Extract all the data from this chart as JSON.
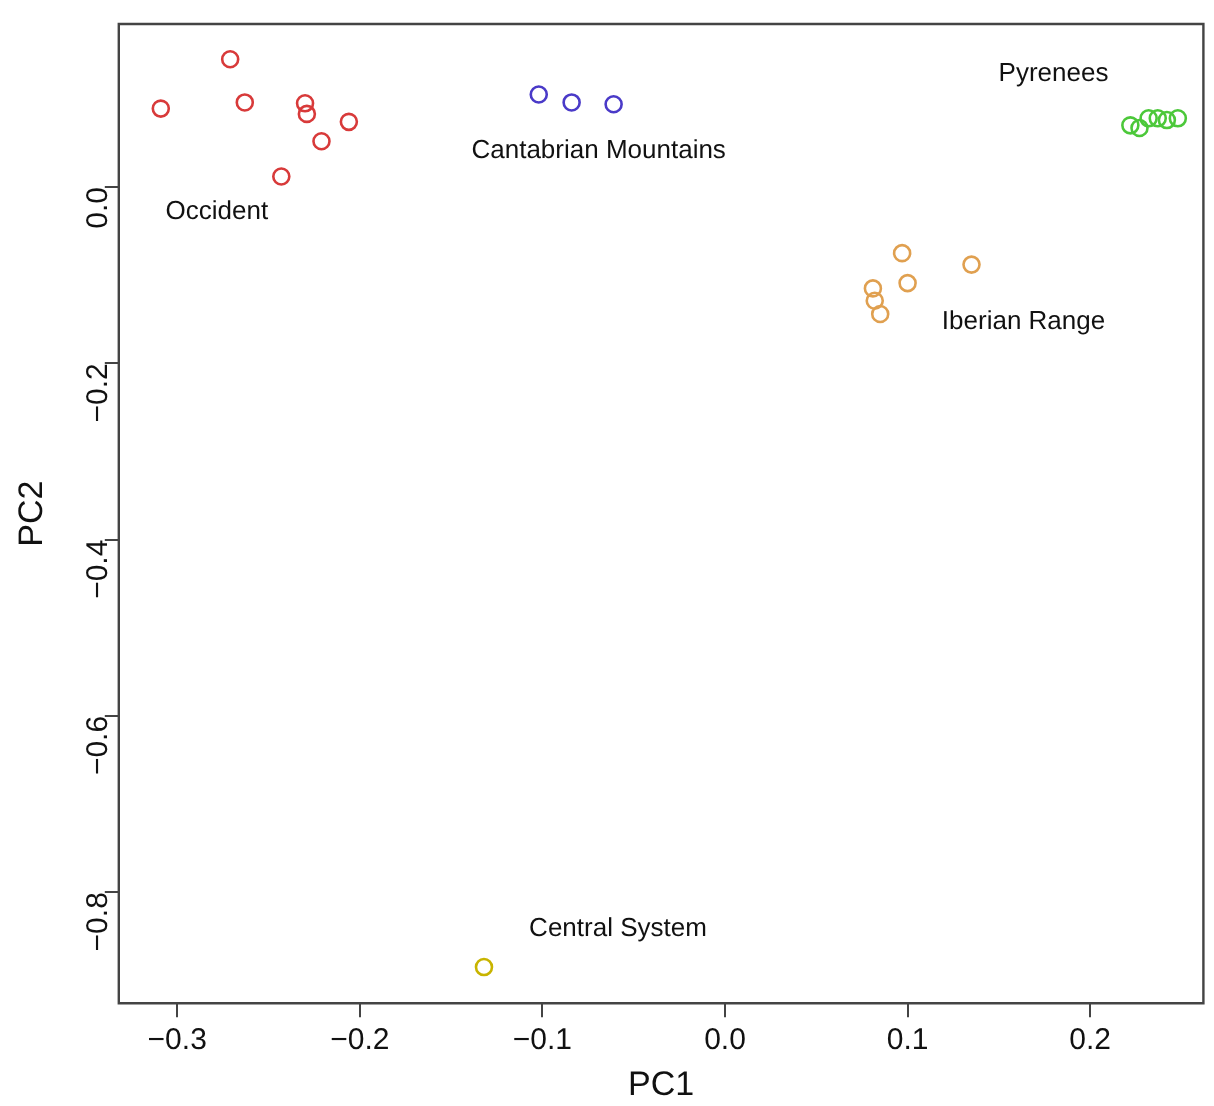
{
  "chart_data": {
    "type": "scatter",
    "xlabel": "PC1",
    "ylabel": "PC2",
    "xlim": [
      -0.332,
      0.262
    ],
    "ylim": [
      -0.926,
      0.185
    ],
    "xticks": [
      -0.3,
      -0.2,
      -0.1,
      {
        "value": 0,
        "label": "0.0"
      },
      0.1,
      0.2
    ],
    "yticks": [
      -0.8,
      -0.6,
      -0.4,
      -0.2,
      {
        "value": 0,
        "label": "0.0"
      }
    ],
    "grid": false,
    "legend": false,
    "marker": "circle",
    "series": [
      {
        "name": "Occident",
        "color": "#d83a3a",
        "x": [
          -0.309,
          -0.271,
          -0.263,
          -0.23,
          -0.229,
          -0.206,
          -0.221,
          -0.243
        ],
        "values": [
          0.089,
          0.145,
          0.096,
          0.095,
          0.083,
          0.074,
          0.052,
          0.012
        ]
      },
      {
        "name": "Cantabrian Mountains",
        "color": "#4a3ac8",
        "x": [
          -0.102,
          -0.084,
          -0.061
        ],
        "values": [
          0.105,
          0.096,
          0.094
        ]
      },
      {
        "name": "Pyrenees",
        "color": "#4cc83a",
        "x": [
          0.222,
          0.227,
          0.232,
          0.237,
          0.242,
          0.248
        ],
        "values": [
          0.07,
          0.067,
          0.078,
          0.078,
          0.076,
          0.078
        ]
      },
      {
        "name": "Iberian Range",
        "color": "#e0a050",
        "x": [
          0.097,
          0.135,
          0.1,
          0.081,
          0.082,
          0.085
        ],
        "values": [
          -0.075,
          -0.088,
          -0.109,
          -0.115,
          -0.129,
          -0.144
        ]
      },
      {
        "name": "Central System",
        "color": "#c8b400",
        "x": [
          -0.132
        ],
        "values": [
          -0.885
        ]
      }
    ]
  }
}
